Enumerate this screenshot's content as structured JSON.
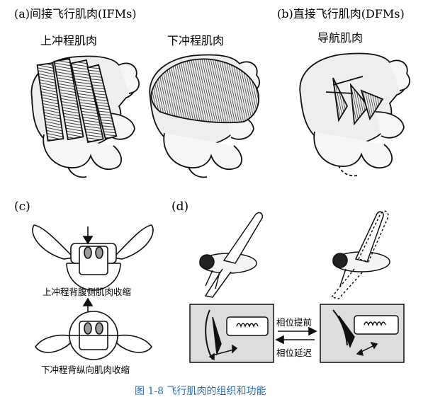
{
  "panel_a": {
    "header": "(a)间接飞行肌肉(IFMs)",
    "label_upstroke": "上冲程肌肉",
    "label_downstroke": "下冲程肌肉"
  },
  "panel_b": {
    "header": "(b)直接飞行肌肉(DFMs)",
    "label_steering": "导航肌肉"
  },
  "panel_c": {
    "tag": "(c)",
    "caption_top": "上冲程背腹侧肌肉收缩",
    "caption_bottom": "下冲程背纵向肌肉收缩"
  },
  "panel_d": {
    "tag": "(d)",
    "phase_advance": "相位提前",
    "phase_delay": "相位延迟"
  },
  "figure_caption": "图 1-8  飞行肌肉的组织和功能"
}
